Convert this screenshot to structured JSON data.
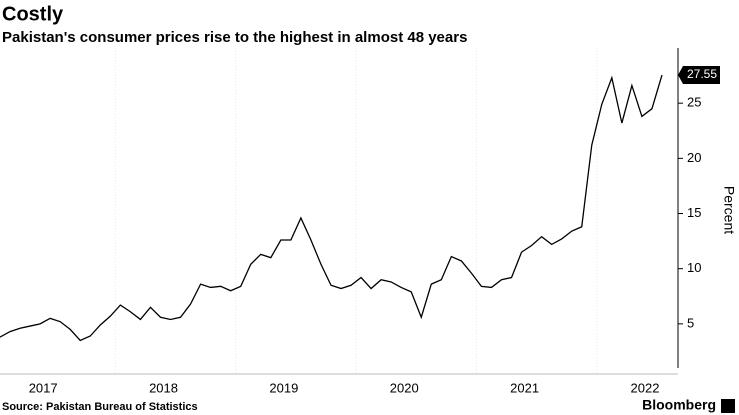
{
  "chart_data": {
    "type": "line",
    "title": "Costly",
    "subtitle": "Pakistan's consumer prices rise to the highest in almost 48 years",
    "y_label": "Percent",
    "source": "Source: Pakistan Bureau of Statistics",
    "brand": "Bloomberg",
    "categories": [
      "2017",
      null,
      null,
      null,
      null,
      null,
      null,
      null,
      null,
      null,
      null,
      null,
      "2018",
      null,
      null,
      null,
      null,
      null,
      null,
      null,
      null,
      null,
      null,
      null,
      "2019",
      null,
      null,
      null,
      null,
      null,
      null,
      null,
      null,
      null,
      null,
      null,
      "2020",
      null,
      null,
      null,
      null,
      null,
      null,
      null,
      null,
      null,
      null,
      null,
      "2021",
      null,
      null,
      null,
      null,
      null,
      null,
      null,
      null,
      null,
      null,
      null,
      "2022",
      null,
      null,
      null,
      null,
      null,
      null
    ],
    "values": [
      3.8,
      4.3,
      4.6,
      4.8,
      5.0,
      5.5,
      5.2,
      4.5,
      3.5,
      3.9,
      4.9,
      5.7,
      6.7,
      6.1,
      5.4,
      6.5,
      5.6,
      5.4,
      5.6,
      6.8,
      8.6,
      8.3,
      8.4,
      8.0,
      8.4,
      10.4,
      11.3,
      11.0,
      12.6,
      12.6,
      14.6,
      12.6,
      10.4,
      8.5,
      8.2,
      8.5,
      9.2,
      8.2,
      9.0,
      8.8,
      8.3,
      7.9,
      5.6,
      8.6,
      9.0,
      11.1,
      10.7,
      9.6,
      8.4,
      8.3,
      9.0,
      9.2,
      11.5,
      12.1,
      12.9,
      12.2,
      12.7,
      13.4,
      13.8,
      21.2,
      24.9,
      27.3,
      23.2,
      26.6,
      23.8,
      24.5,
      27.55
    ],
    "color": "#000000",
    "ylim": [
      1,
      30
    ],
    "yticks": [
      5,
      10,
      15,
      20,
      25
    ],
    "y_axis_side": "right",
    "grid": false
  }
}
